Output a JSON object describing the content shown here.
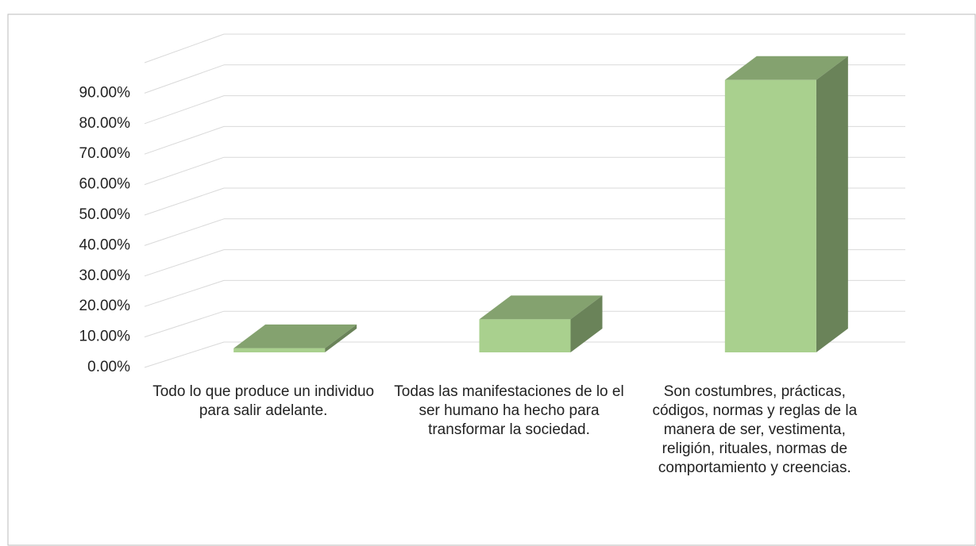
{
  "chart_data": {
    "type": "bar3d",
    "categories": [
      "Todo lo que produce un individuo para salir adelante.",
      "Todas las manifestaciones de lo el ser humano ha hecho para transformar la sociedad.",
      "Son costumbres, prácticas, códigos, normas y reglas de la manera de ser, vestimenta, religión, rituales, normas de comportamiento y creencias."
    ],
    "values": [
      1.33,
      10.67,
      88
    ],
    "color": "#a9d08e",
    "ylim": [
      0,
      100
    ],
    "yticks": [
      {
        "value": 0,
        "label": "0.00%"
      },
      {
        "value": 10,
        "label": "10.00%"
      },
      {
        "value": 20,
        "label": "20.00%"
      },
      {
        "value": 30,
        "label": "30.00%"
      },
      {
        "value": 40,
        "label": "40.00%"
      },
      {
        "value": 50,
        "label": "50.00%"
      },
      {
        "value": 60,
        "label": "60.00%"
      },
      {
        "value": 70,
        "label": "70.00%"
      },
      {
        "value": 80,
        "label": "80.00%"
      },
      {
        "value": 90,
        "label": "90.00%"
      }
    ],
    "grid": true
  }
}
